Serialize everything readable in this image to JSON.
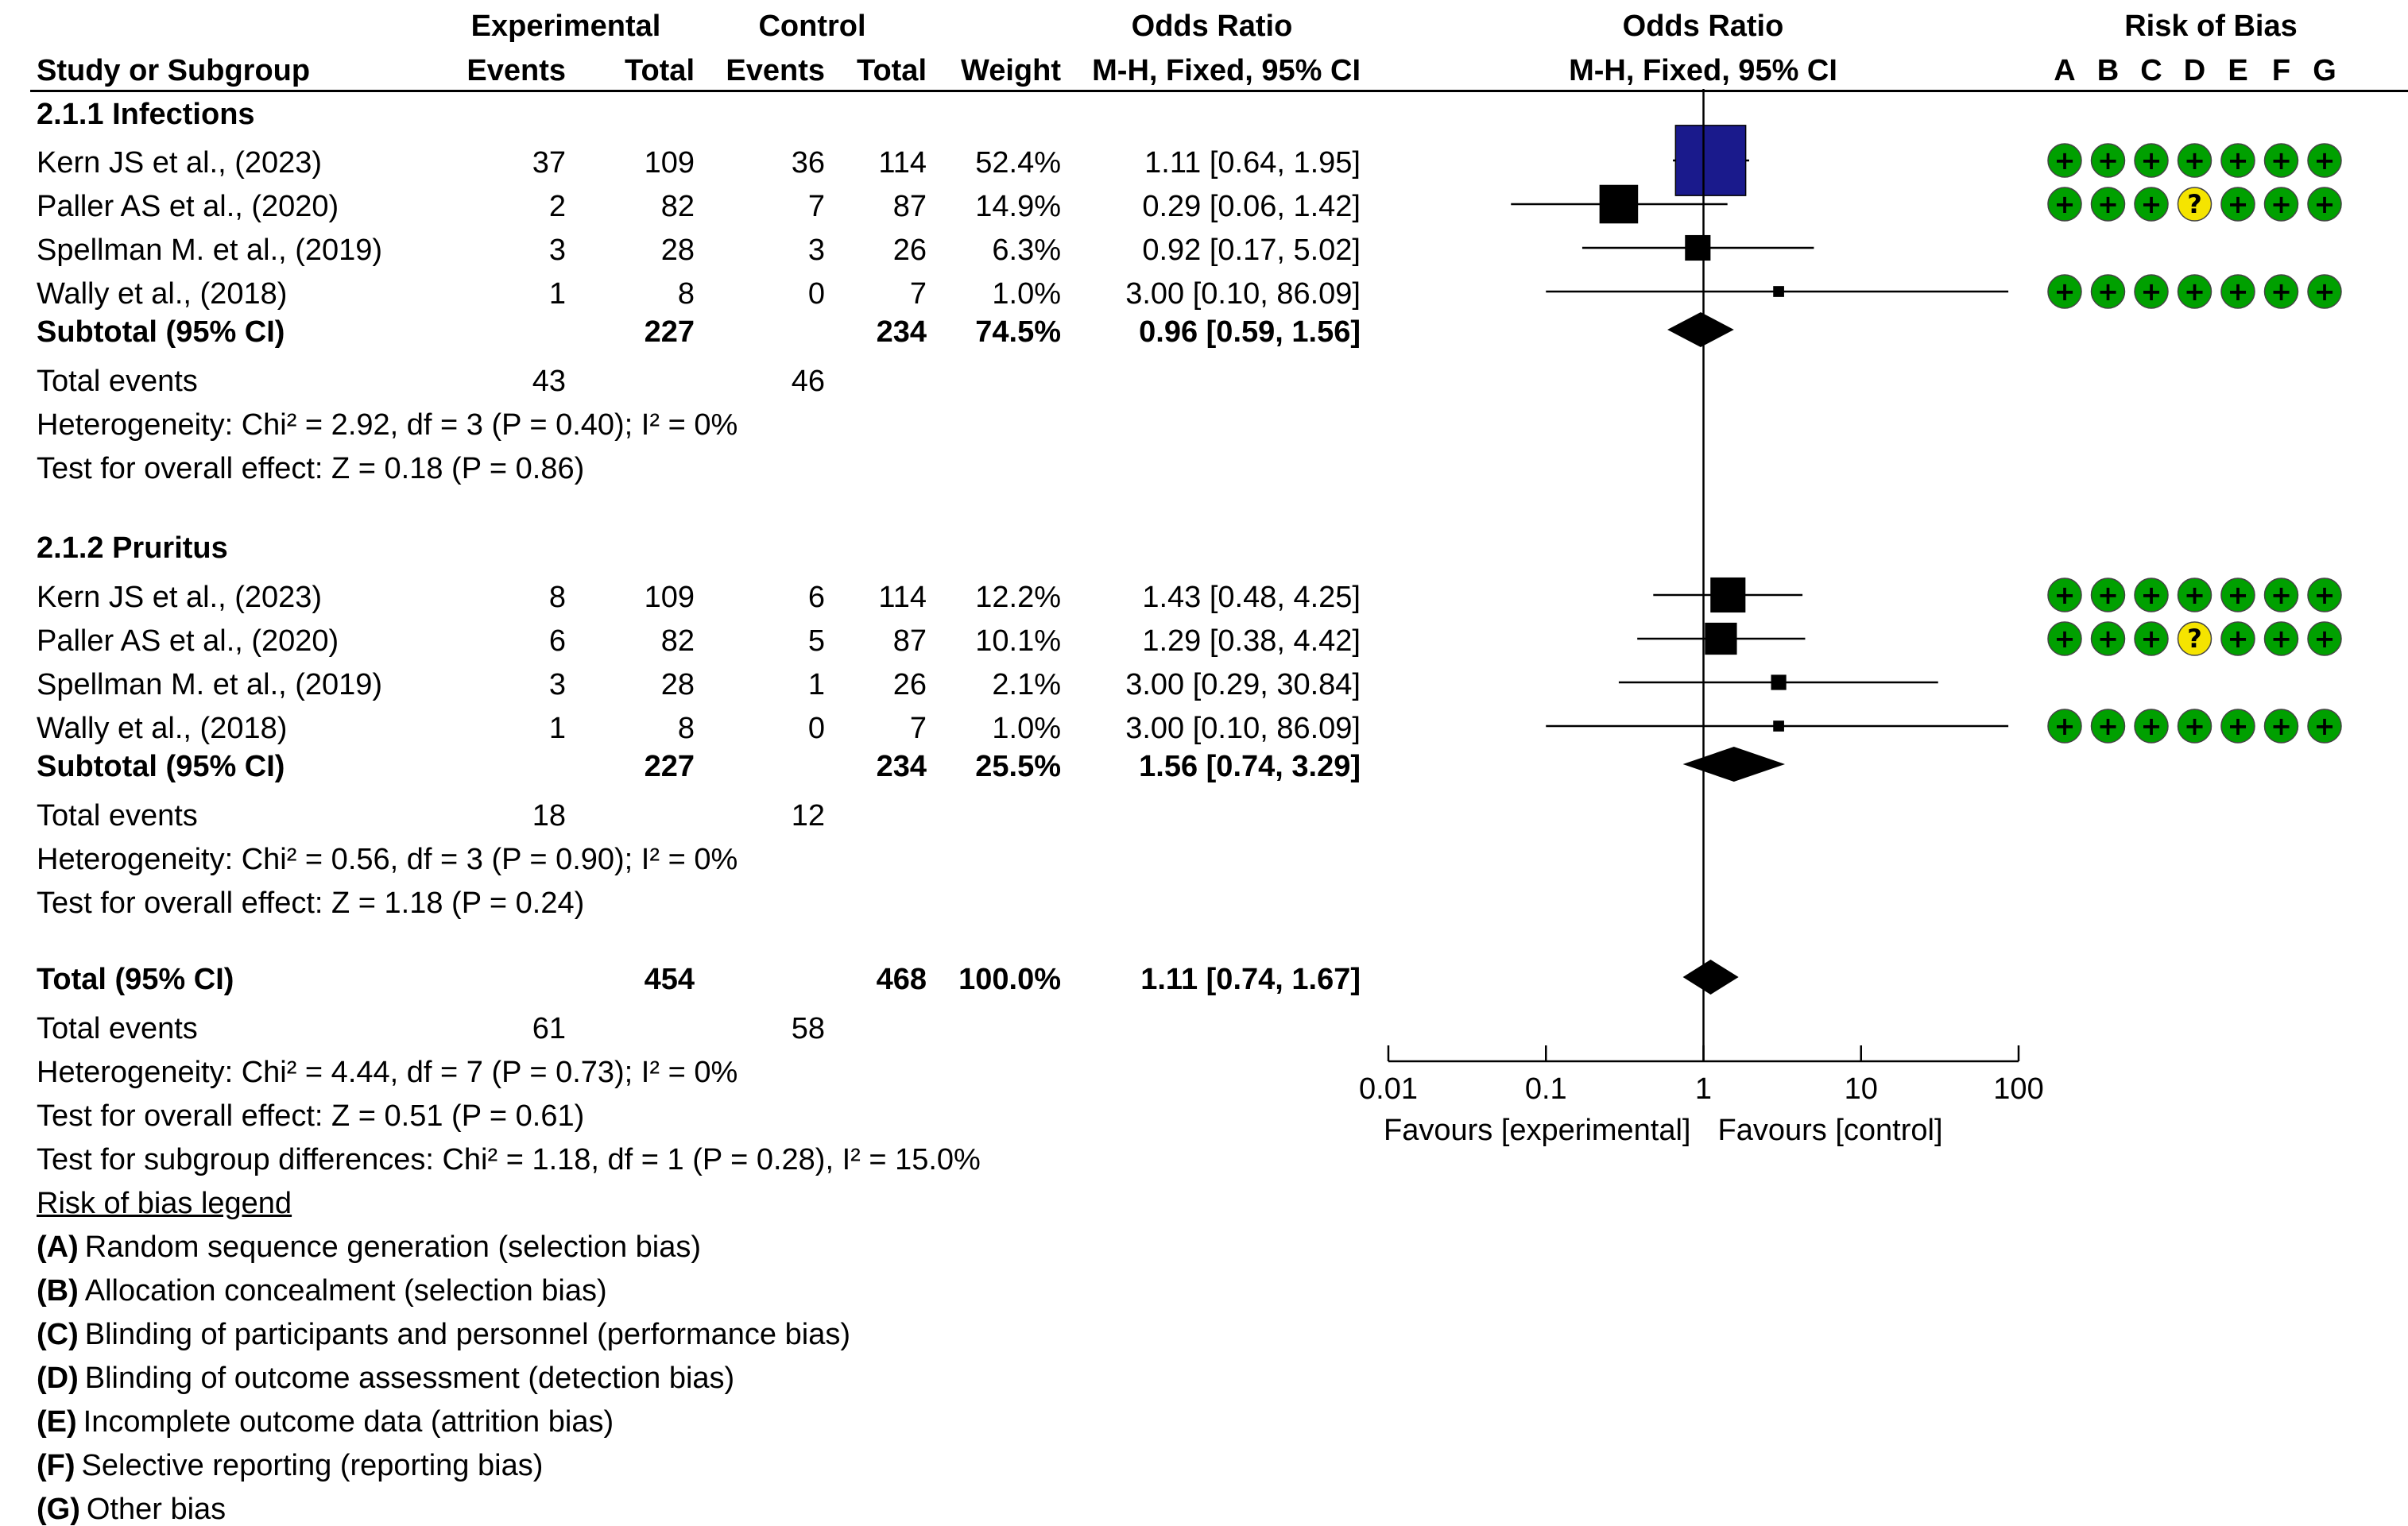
{
  "headers": {
    "study": "Study or Subgroup",
    "experimental": "Experimental",
    "control": "Control",
    "events": "Events",
    "total": "Total",
    "weight": "Weight",
    "or_title": "Odds Ratio",
    "or_method": "M-H, Fixed, 95% CI",
    "plot_title": "Odds Ratio",
    "plot_method": "M-H, Fixed, 95% CI",
    "rob_title": "Risk of Bias",
    "rob_letters": [
      "A",
      "B",
      "C",
      "D",
      "E",
      "F",
      "G"
    ]
  },
  "groups": [
    {
      "title": "2.1.1 Infections",
      "studies": [
        {
          "name": "Kern JS et al., (2023)",
          "exp_events": "37",
          "exp_total": "109",
          "ctl_events": "36",
          "ctl_total": "114",
          "weight": "52.4%",
          "ci_text": "1.11 [0.64, 1.95]"
        },
        {
          "name": "Paller AS et al., (2020)",
          "exp_events": "2",
          "exp_total": "82",
          "ctl_events": "7",
          "ctl_total": "87",
          "weight": "14.9%",
          "ci_text": "0.29 [0.06, 1.42]"
        },
        {
          "name": "Spellman M. et al., (2019)",
          "exp_events": "3",
          "exp_total": "28",
          "ctl_events": "3",
          "ctl_total": "26",
          "weight": "6.3%",
          "ci_text": "0.92 [0.17, 5.02]"
        },
        {
          "name": "Wally et al., (2018)",
          "exp_events": "1",
          "exp_total": "8",
          "ctl_events": "0",
          "ctl_total": "7",
          "weight": "1.0%",
          "ci_text": "3.00 [0.10, 86.09]"
        }
      ],
      "subtotal": {
        "label": "Subtotal (95% CI)",
        "exp_total": "227",
        "ctl_total": "234",
        "weight": "74.5%",
        "ci_text": "0.96 [0.59, 1.56]"
      },
      "total_events": {
        "label": "Total events",
        "exp": "43",
        "ctl": "46"
      },
      "heterogeneity": "Heterogeneity: Chi² = 2.92, df = 3 (P = 0.40); I² = 0%",
      "overall_effect": "Test for overall effect: Z = 0.18 (P = 0.86)"
    },
    {
      "title": "2.1.2 Pruritus",
      "studies": [
        {
          "name": "Kern JS et al., (2023)",
          "exp_events": "8",
          "exp_total": "109",
          "ctl_events": "6",
          "ctl_total": "114",
          "weight": "12.2%",
          "ci_text": "1.43 [0.48, 4.25]"
        },
        {
          "name": "Paller AS et al., (2020)",
          "exp_events": "6",
          "exp_total": "82",
          "ctl_events": "5",
          "ctl_total": "87",
          "weight": "10.1%",
          "ci_text": "1.29 [0.38, 4.42]"
        },
        {
          "name": "Spellman M. et al., (2019)",
          "exp_events": "3",
          "exp_total": "28",
          "ctl_events": "1",
          "ctl_total": "26",
          "weight": "2.1%",
          "ci_text": "3.00 [0.29, 30.84]"
        },
        {
          "name": "Wally et al., (2018)",
          "exp_events": "1",
          "exp_total": "8",
          "ctl_events": "0",
          "ctl_total": "7",
          "weight": "1.0%",
          "ci_text": "3.00 [0.10, 86.09]"
        }
      ],
      "subtotal": {
        "label": "Subtotal (95% CI)",
        "exp_total": "227",
        "ctl_total": "234",
        "weight": "25.5%",
        "ci_text": "1.56 [0.74, 3.29]"
      },
      "total_events": {
        "label": "Total events",
        "exp": "18",
        "ctl": "12"
      },
      "heterogeneity": "Heterogeneity: Chi² = 0.56, df = 3 (P = 0.90); I² = 0%",
      "overall_effect": "Test for overall effect: Z = 1.18 (P = 0.24)"
    }
  ],
  "overall": {
    "label": "Total (95% CI)",
    "exp_total": "454",
    "ctl_total": "468",
    "weight": "100.0%",
    "ci_text": "1.11 [0.74, 1.67]",
    "total_events": {
      "label": "Total events",
      "exp": "61",
      "ctl": "58"
    },
    "heterogeneity": "Heterogeneity: Chi² = 4.44, df = 7 (P = 0.73); I² = 0%",
    "overall_effect": "Test for overall effect: Z = 0.51 (P = 0.61)",
    "subgroup_diff": "Test for subgroup differences: Chi² = 1.18, df = 1 (P = 0.28), I² = 15.0%"
  },
  "rob_legend": {
    "title": "Risk of bias legend",
    "items": [
      {
        "key": "(A)",
        "text": "Random sequence generation (selection bias)"
      },
      {
        "key": "(B)",
        "text": "Allocation concealment (selection bias)"
      },
      {
        "key": "(C)",
        "text": "Blinding of participants and personnel (performance bias)"
      },
      {
        "key": "(D)",
        "text": "Blinding of outcome assessment (detection bias)"
      },
      {
        "key": "(E)",
        "text": "Incomplete outcome data (attrition bias)"
      },
      {
        "key": "(F)",
        "text": "Selective reporting (reporting bias)"
      },
      {
        "key": "(G)",
        "text": "Other bias"
      }
    ]
  },
  "axis": {
    "ticks": [
      0.01,
      0.1,
      1,
      10,
      100
    ],
    "tick_labels": [
      "0.01",
      "0.1",
      "1",
      "10",
      "100"
    ],
    "favours_left": "Favours [experimental]",
    "favours_right": "Favours [control]"
  },
  "symbols": {
    "low": "+",
    "unclear": "?"
  },
  "colors": {
    "low": "#00a000",
    "unclear": "#f5e400",
    "square": "#1a1a8c",
    "line": "#000000"
  },
  "chart_data": {
    "type": "forest",
    "title": "Odds Ratio",
    "subtitle": "M-H, Fixed, 95% CI",
    "xscale": "log",
    "xlim": [
      0.01,
      100
    ],
    "null_line": 1,
    "studies": [
      {
        "subgroup": "2.1.1 Infections",
        "name": "Kern JS et al., (2023)",
        "or": 1.11,
        "lo": 0.64,
        "hi": 1.95,
        "weight": 52.4,
        "rob": [
          "low",
          "low",
          "low",
          "low",
          "low",
          "low",
          "low"
        ]
      },
      {
        "subgroup": "2.1.1 Infections",
        "name": "Paller AS et al., (2020)",
        "or": 0.29,
        "lo": 0.06,
        "hi": 1.42,
        "weight": 14.9,
        "rob": [
          "low",
          "low",
          "low",
          "unclear",
          "low",
          "low",
          "low"
        ]
      },
      {
        "subgroup": "2.1.1 Infections",
        "name": "Spellman M. et al., (2019)",
        "or": 0.92,
        "lo": 0.17,
        "hi": 5.02,
        "weight": 6.3,
        "rob": []
      },
      {
        "subgroup": "2.1.1 Infections",
        "name": "Wally et al., (2018)",
        "or": 3.0,
        "lo": 0.1,
        "hi": 86.09,
        "weight": 1.0,
        "rob": [
          "low",
          "low",
          "low",
          "low",
          "low",
          "low",
          "low"
        ]
      },
      {
        "subgroup": "2.1.2 Pruritus",
        "name": "Kern JS et al., (2023)",
        "or": 1.43,
        "lo": 0.48,
        "hi": 4.25,
        "weight": 12.2,
        "rob": [
          "low",
          "low",
          "low",
          "low",
          "low",
          "low",
          "low"
        ]
      },
      {
        "subgroup": "2.1.2 Pruritus",
        "name": "Paller AS et al., (2020)",
        "or": 1.29,
        "lo": 0.38,
        "hi": 4.42,
        "weight": 10.1,
        "rob": [
          "low",
          "low",
          "low",
          "unclear",
          "low",
          "low",
          "low"
        ]
      },
      {
        "subgroup": "2.1.2 Pruritus",
        "name": "Spellman M. et al., (2019)",
        "or": 3.0,
        "lo": 0.29,
        "hi": 30.84,
        "weight": 2.1,
        "rob": []
      },
      {
        "subgroup": "2.1.2 Pruritus",
        "name": "Wally et al., (2018)",
        "or": 3.0,
        "lo": 0.1,
        "hi": 86.09,
        "weight": 1.0,
        "rob": [
          "low",
          "low",
          "low",
          "low",
          "low",
          "low",
          "low"
        ]
      }
    ],
    "subtotals": [
      {
        "subgroup": "2.1.1 Infections",
        "or": 0.96,
        "lo": 0.59,
        "hi": 1.56
      },
      {
        "subgroup": "2.1.2 Pruritus",
        "or": 1.56,
        "lo": 0.74,
        "hi": 3.29
      }
    ],
    "overall": {
      "or": 1.11,
      "lo": 0.74,
      "hi": 1.67
    }
  }
}
